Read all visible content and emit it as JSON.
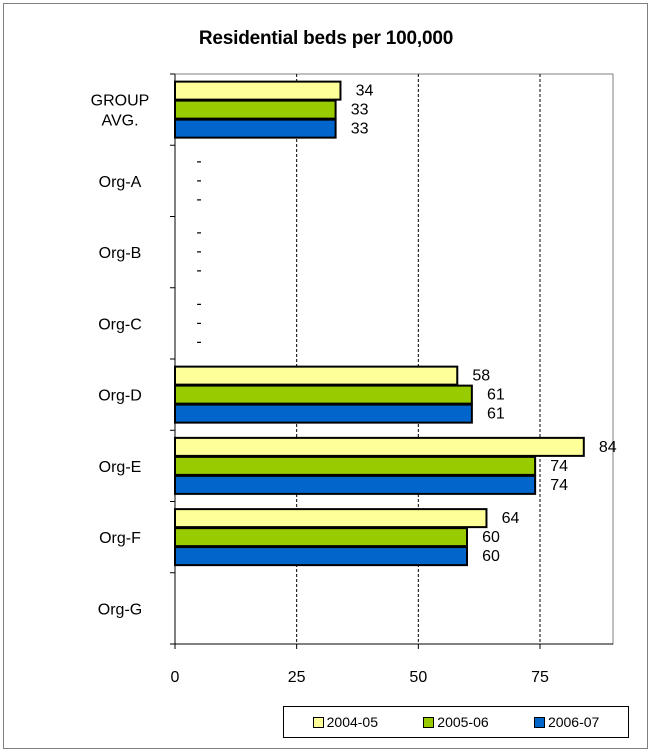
{
  "chart_data": {
    "type": "bar",
    "orientation": "horizontal",
    "title": "Residential beds per 100,000",
    "categories": [
      "GROUP AVG.",
      "Org-A",
      "Org-B",
      "Org-C",
      "Org-D",
      "Org-E",
      "Org-F",
      "Org-G"
    ],
    "category_lines": [
      [
        "GROUP",
        "AVG."
      ],
      [
        "Org-A"
      ],
      [
        "Org-B"
      ],
      [
        "Org-C"
      ],
      [
        "Org-D"
      ],
      [
        "Org-E"
      ],
      [
        "Org-F"
      ],
      [
        "Org-G"
      ]
    ],
    "series": [
      {
        "name": "2004-05",
        "color": "#FFFF99",
        "values": [
          34,
          null,
          null,
          null,
          58,
          84,
          64,
          null
        ],
        "labels": [
          "34",
          "-",
          "-",
          "-",
          "58",
          "84",
          "64",
          ""
        ]
      },
      {
        "name": "2005-06",
        "color": "#99CC00",
        "values": [
          33,
          null,
          null,
          null,
          61,
          74,
          60,
          null
        ],
        "labels": [
          "33",
          "-",
          "-",
          "-",
          "61",
          "74",
          "60",
          ""
        ]
      },
      {
        "name": "2006-07",
        "color": "#0066CC",
        "values": [
          33,
          null,
          null,
          null,
          61,
          74,
          60,
          null
        ],
        "labels": [
          "33",
          "-",
          "-",
          "-",
          "61",
          "74",
          "60",
          ""
        ]
      }
    ],
    "xlim": [
      0,
      90
    ],
    "xticks": [
      0,
      25,
      50,
      75
    ],
    "grid": "vertical dashed",
    "legend_position": "bottom-right",
    "xlabel": "",
    "ylabel": ""
  }
}
